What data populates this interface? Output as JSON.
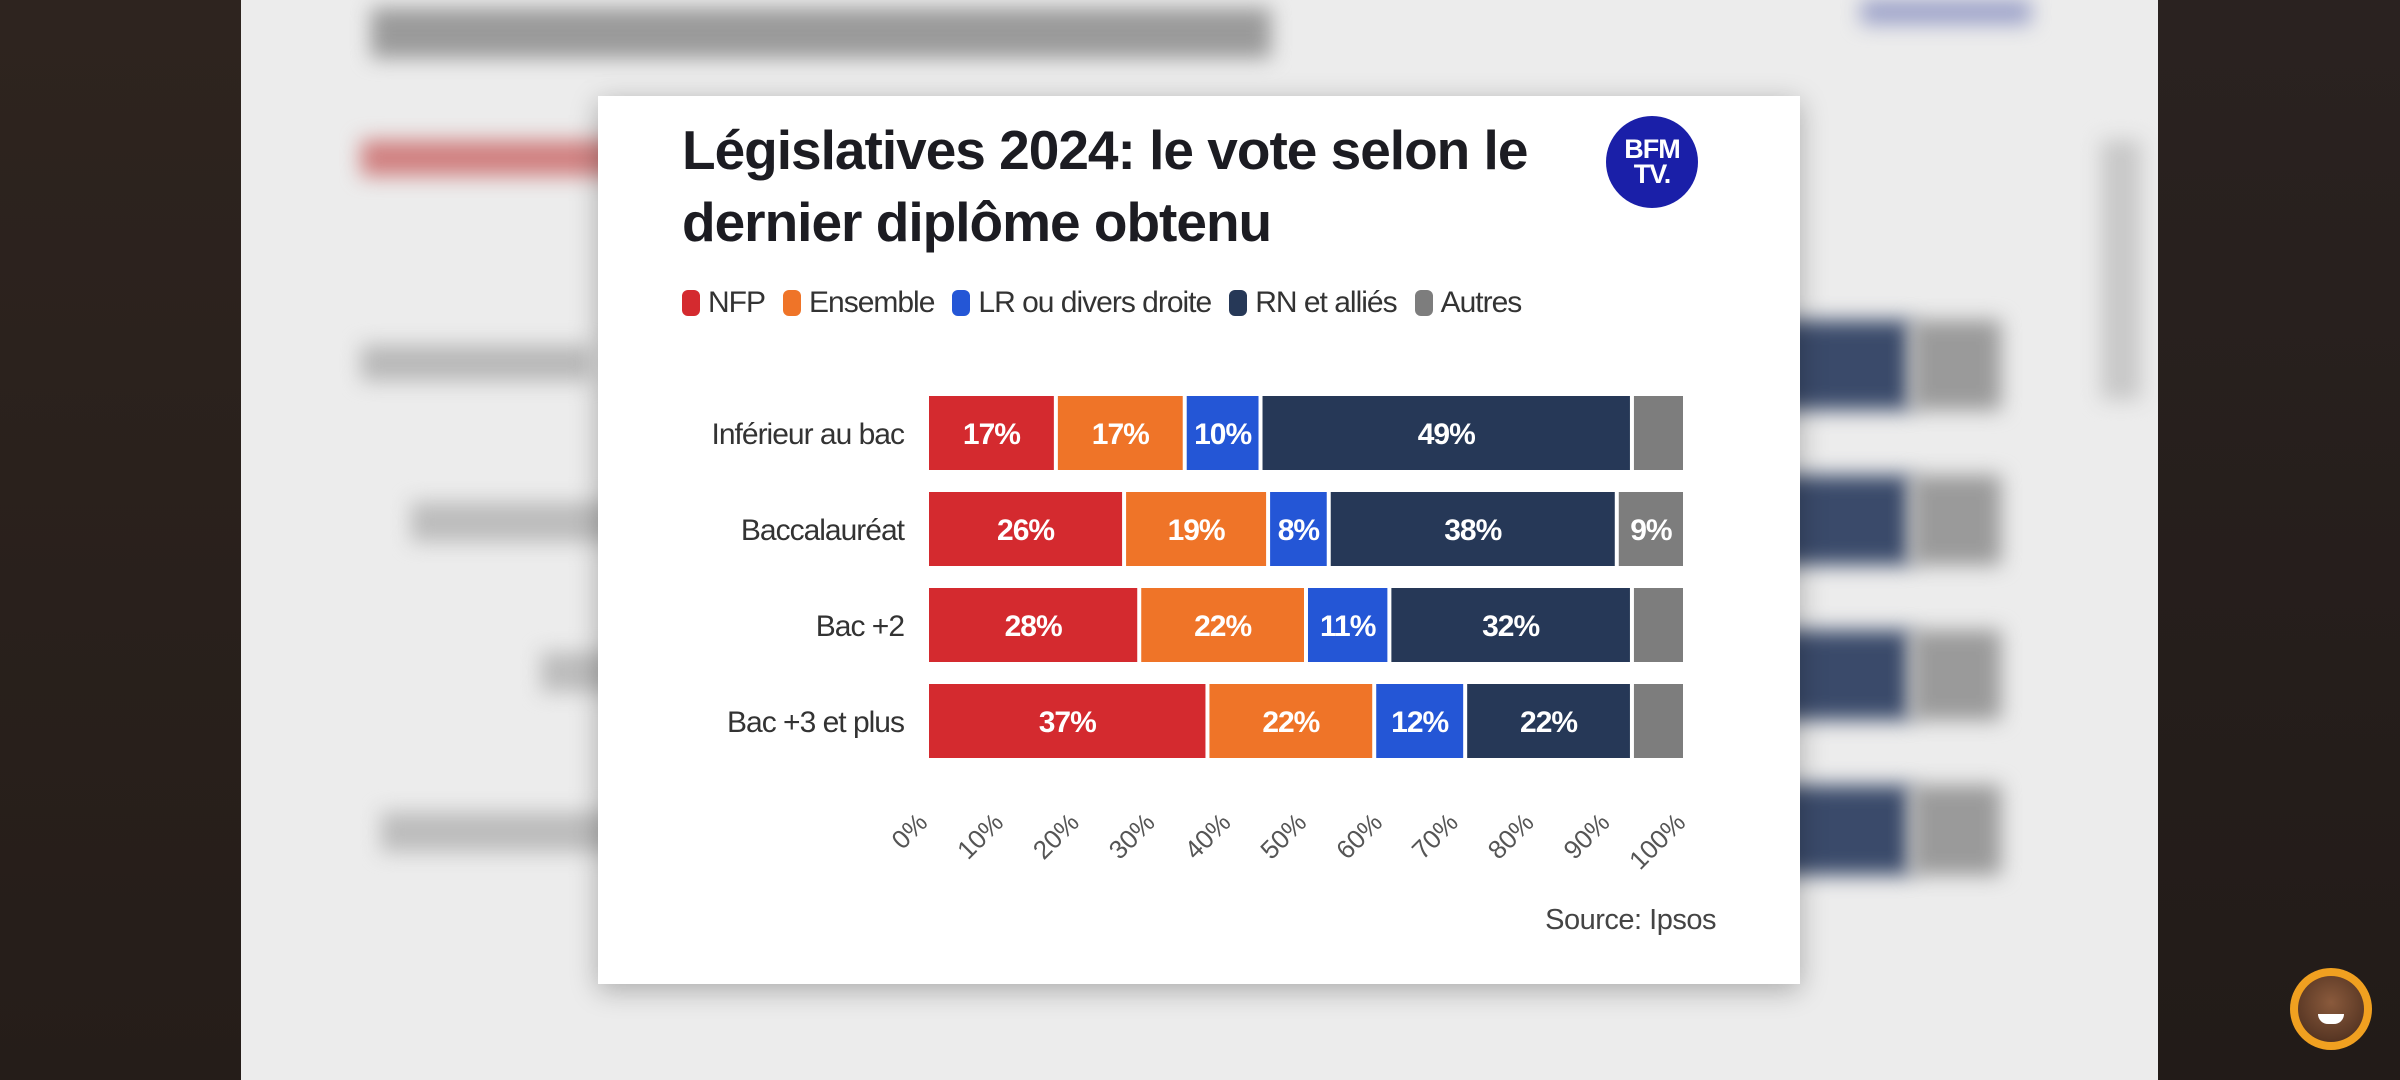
{
  "title": "Législatives 2024: le vote selon le dernier diplôme obtenu",
  "logo": {
    "line1": "BFM",
    "line2": "TV."
  },
  "source": "Source: Ipsos",
  "icons": {
    "logo": "bfmtv-logo",
    "avatar": "streamer-avatar"
  },
  "colors": {
    "NFP": "#d42a2f",
    "Ensemble": "#ef7428",
    "LR ou divers droite": "#2456d6",
    "RN et alliés": "#263857",
    "Autres": "#7d7d7d"
  },
  "chart_data": {
    "type": "bar",
    "orientation": "horizontal",
    "stacked": true,
    "title": "Législatives 2024: le vote selon le dernier diplôme obtenu",
    "legend_position": "top",
    "categories": [
      "Inférieur au bac",
      "Baccalauréat",
      "Bac +2",
      "Bac +3 et plus"
    ],
    "series": [
      {
        "name": "NFP",
        "values": [
          17,
          26,
          28,
          37
        ],
        "labels": [
          "17%",
          "26%",
          "28%",
          "37%"
        ]
      },
      {
        "name": "Ensemble",
        "values": [
          17,
          19,
          22,
          22
        ],
        "labels": [
          "17%",
          "19%",
          "22%",
          "22%"
        ]
      },
      {
        "name": "LR ou divers droite",
        "values": [
          10,
          8,
          11,
          12
        ],
        "labels": [
          "10%",
          "8%",
          "11%",
          "12%"
        ]
      },
      {
        "name": "RN et alliés",
        "values": [
          49,
          38,
          32,
          22
        ],
        "labels": [
          "49%",
          "38%",
          "32%",
          "22%"
        ]
      },
      {
        "name": "Autres",
        "values": [
          7,
          9,
          7,
          7
        ],
        "labels": [
          "",
          "9%",
          "",
          ""
        ]
      }
    ],
    "x_ticks": [
      "0%",
      "10%",
      "20%",
      "30%",
      "40%",
      "50%",
      "60%",
      "70%",
      "80%",
      "90%",
      "100%"
    ],
    "xlim": [
      0,
      100
    ],
    "grid": false
  }
}
